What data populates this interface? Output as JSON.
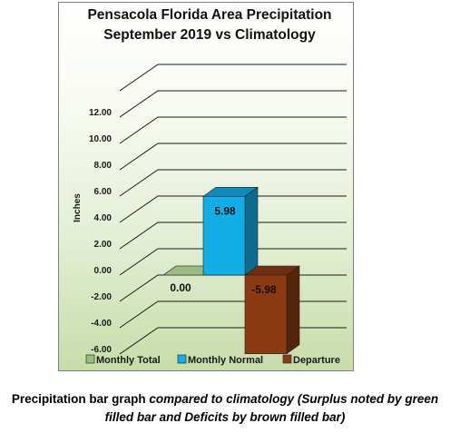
{
  "caption": {
    "lead": "Precipitation bar graph ",
    "emphasis": "compared to climatology (Surplus noted by green filled bar and Deficits by brown filled bar)"
  },
  "chart_data": {
    "type": "bar",
    "title": [
      "Pensacola Florida Area Precipitation",
      "September 2019 vs Climatology"
    ],
    "ylabel": "Inches",
    "xlabel": "",
    "ylim": [
      -6,
      14
    ],
    "yticks": [
      "12.00",
      "10.00",
      "8.00",
      "6.00",
      "4.00",
      "2.00",
      "0.00",
      "-2.00",
      "-4.00",
      "-6.00"
    ],
    "grid": true,
    "legend_position": "bottom",
    "series": [
      {
        "name": "Monthly Total",
        "value": 0.0,
        "label": "0.00",
        "color": "#9bbb83"
      },
      {
        "name": "Monthly Normal",
        "value": 5.98,
        "label": "5.98",
        "color": "#12aee8"
      },
      {
        "name": "Departure",
        "value": -5.98,
        "label": "-5.98",
        "color": "#8b3a12"
      }
    ]
  }
}
